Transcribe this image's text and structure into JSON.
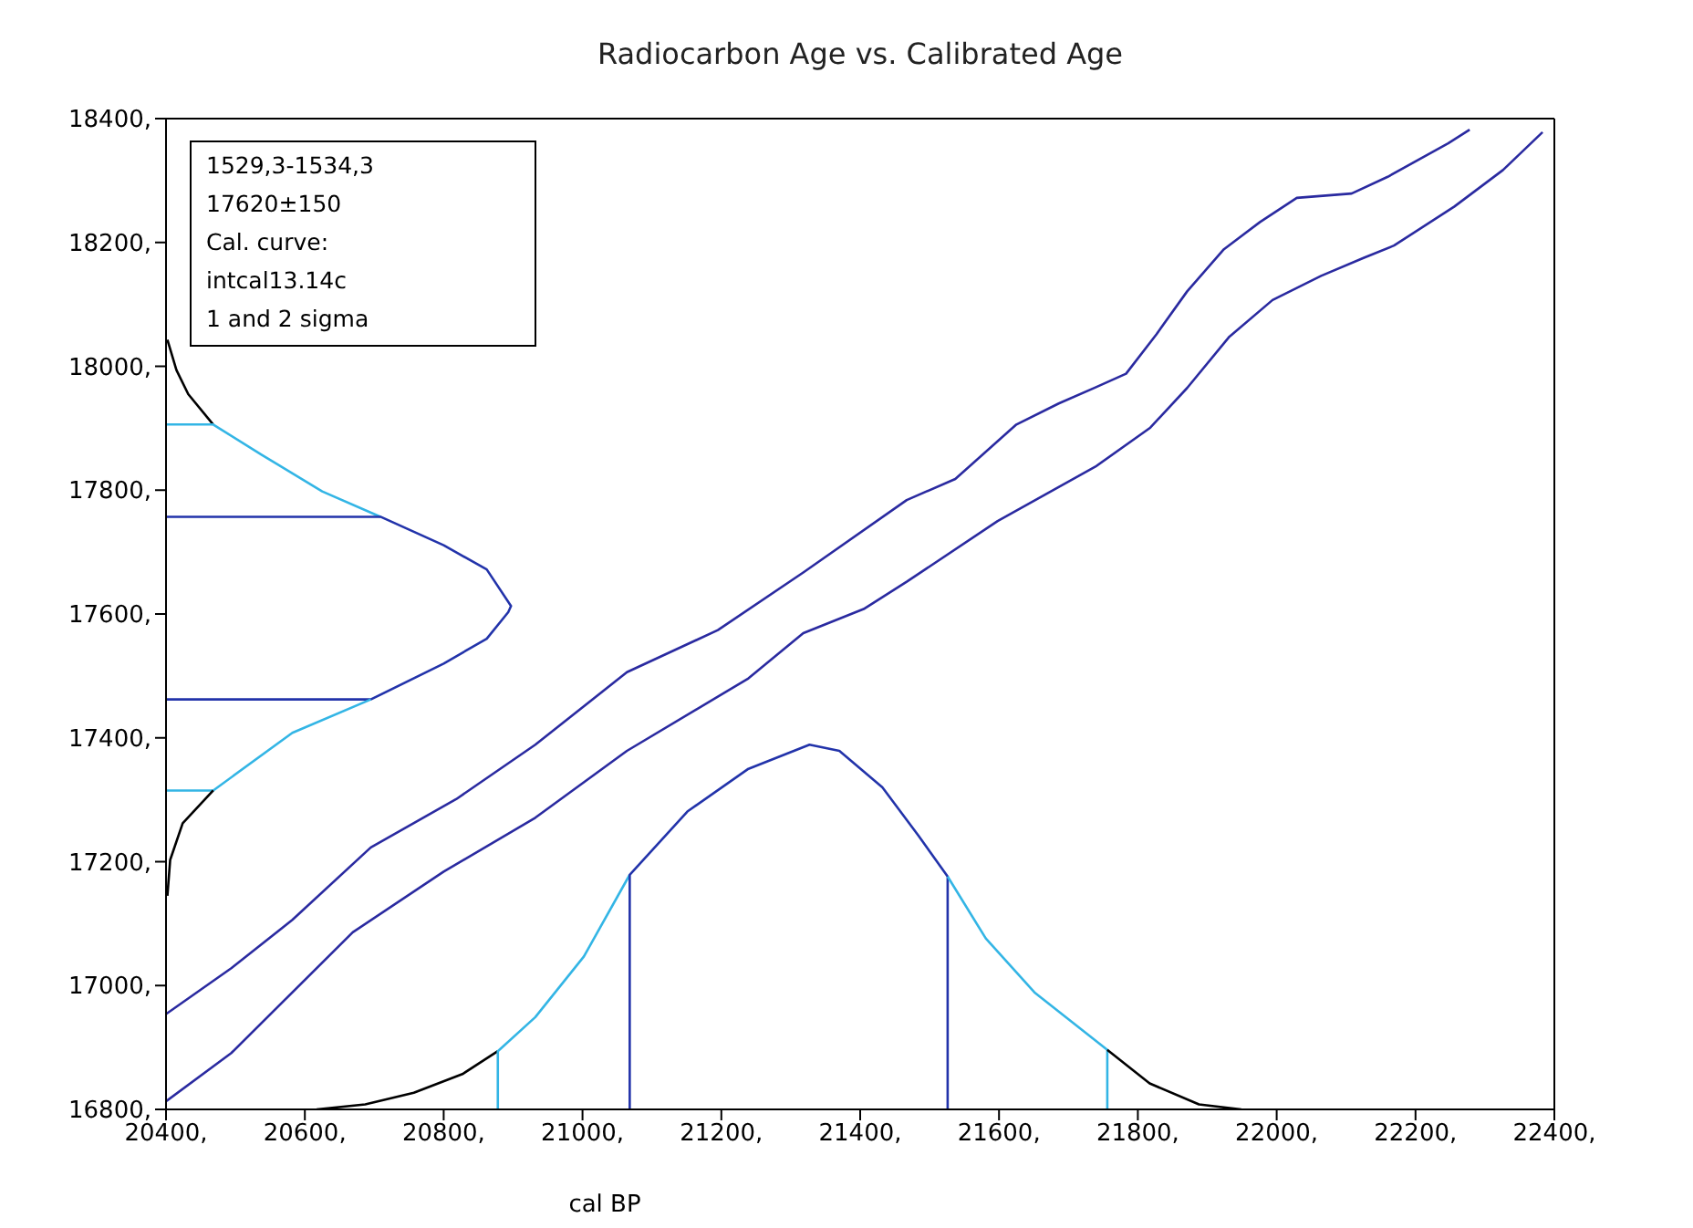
{
  "chart_data": {
    "type": "line",
    "title": "Radiocarbon Age vs. Calibrated Age",
    "xlabel": "cal BP",
    "annotations": [
      "1529,3-1534,3",
      "17620±150",
      "Cal. curve:",
      "intcal13.14c",
      "1 and 2 sigma"
    ],
    "xlim": [
      20400,
      22400
    ],
    "xticks": [
      {
        "value": 20400,
        "label": "20400,"
      },
      {
        "value": 20600,
        "label": "20600,"
      },
      {
        "value": 20800,
        "label": "20800,"
      },
      {
        "value": 21000,
        "label": "21000,"
      },
      {
        "value": 21200,
        "label": "21200,"
      },
      {
        "value": 21400,
        "label": "21400,"
      },
      {
        "value": 21600,
        "label": "21600,"
      },
      {
        "value": 21800,
        "label": "21800,"
      },
      {
        "value": 22000,
        "label": "22000,"
      },
      {
        "value": 22200,
        "label": "22200,"
      },
      {
        "value": 22400,
        "label": "22400,"
      }
    ],
    "ylim": [
      16800,
      18400
    ],
    "yticks": [
      {
        "value": 16800,
        "label": "16800,"
      },
      {
        "value": 17000,
        "label": "17000,"
      },
      {
        "value": 17200,
        "label": "17200,"
      },
      {
        "value": 17400,
        "label": "17400,"
      },
      {
        "value": 17600,
        "label": "17600,"
      },
      {
        "value": 17800,
        "label": "17800,"
      },
      {
        "value": 18000,
        "label": "18000,"
      },
      {
        "value": 18200,
        "label": "18200,"
      },
      {
        "value": 18400,
        "label": "18400,"
      }
    ],
    "grid": false,
    "legend": false,
    "series": [
      {
        "color": "#2a2aa0",
        "x": [
          20400,
          20494,
          20582,
          20695,
          20818,
          20932,
          21064,
          21195,
          21318,
          21467,
          21537,
          21625,
          21686,
          21739,
          21783,
          21827,
          21871,
          21924,
          21976,
          22029,
          22108,
          22160,
          22247,
          22278
        ],
        "values": [
          16954,
          17028,
          17106,
          17223,
          17301,
          17389,
          17506,
          17574,
          17667,
          17784,
          17818,
          17906,
          17940,
          17966,
          17988,
          18052,
          18121,
          18189,
          18233,
          18272,
          18279,
          18306,
          18360,
          18382
        ]
      },
      {
        "color": "#2a2aa0",
        "x": [
          20400,
          20494,
          20669,
          20800,
          20932,
          21064,
          21239,
          21318,
          21405,
          21467,
          21598,
          21739,
          21818,
          21871,
          21932,
          21994,
          22064,
          22125,
          22169,
          22256,
          22326,
          22383
        ],
        "values": [
          16813,
          16891,
          17086,
          17184,
          17271,
          17379,
          17496,
          17569,
          17608,
          17652,
          17750,
          17838,
          17901,
          17965,
          18048,
          18107,
          18146,
          18175,
          18195,
          18258,
          18317,
          18378
        ]
      },
      {
        "color": "#000000",
        "x": [
          20402,
          20415,
          20432,
          20468
        ],
        "values": [
          18043,
          17994,
          17955,
          17906
        ]
      },
      {
        "color": "#33b5e5",
        "x": [
          20400,
          20468,
          20538,
          20625,
          20709
        ],
        "values": [
          17906,
          17906,
          17857,
          17798,
          17757
        ]
      },
      {
        "color": "#2233aa",
        "x": [
          20400,
          20709,
          20800,
          20862,
          20897,
          20893,
          20862,
          20800,
          20695,
          20400
        ],
        "values": [
          17757,
          17757,
          17711,
          17672,
          17613,
          17603,
          17560,
          17520,
          17462,
          17462
        ]
      },
      {
        "color": "#33b5e5",
        "x": [
          20695,
          20582,
          20468,
          20400
        ],
        "values": [
          17462,
          17408,
          17315,
          17315
        ]
      },
      {
        "color": "#000000",
        "x": [
          20468,
          20424,
          20406,
          20402
        ],
        "values": [
          17315,
          17262,
          17203,
          17145
        ]
      },
      {
        "color": "#000000",
        "x": [
          20617,
          20687,
          20757,
          20827,
          20878
        ],
        "values": [
          16800,
          16808,
          16827,
          16857,
          16894
        ]
      },
      {
        "color": "#33b5e5",
        "x": [
          20878,
          20878,
          20932,
          21002,
          21068
        ],
        "values": [
          16800,
          16894,
          16949,
          17047,
          17179
        ]
      },
      {
        "color": "#2233aa",
        "x": [
          21068,
          21068,
          21151,
          21239,
          21327,
          21370,
          21432,
          21484,
          21526,
          21526
        ],
        "values": [
          16800,
          17179,
          17281,
          17350,
          17389,
          17379,
          17320,
          17242,
          17176,
          16800
        ]
      },
      {
        "color": "#33b5e5",
        "x": [
          21526,
          21581,
          21651,
          21756,
          21756
        ],
        "values": [
          17176,
          17076,
          16989,
          16896,
          16800
        ]
      },
      {
        "color": "#000000",
        "x": [
          21756,
          21817,
          21888,
          21949
        ],
        "values": [
          16896,
          16842,
          16808,
          16800
        ]
      }
    ]
  }
}
